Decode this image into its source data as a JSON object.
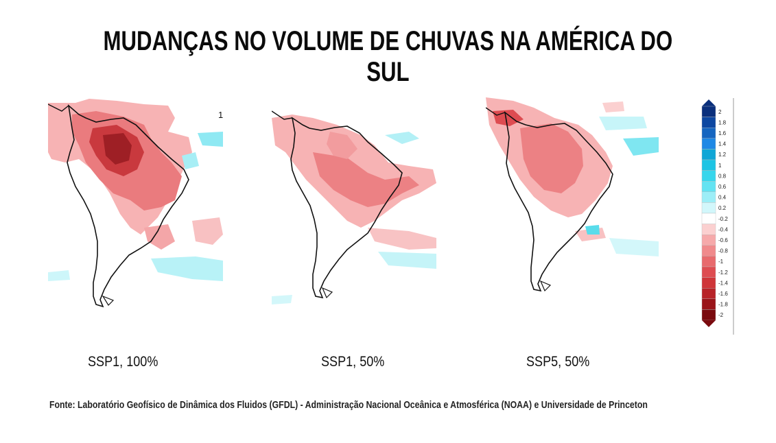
{
  "title": "MUDANÇAS NO VOLUME DE CHUVAS NA AMÉRICA DO SUL",
  "maps": [
    {
      "caption": "SSP1, 100%",
      "corner_label": "1"
    },
    {
      "caption": "SSP1, 50%"
    },
    {
      "caption": "SSP5, 50%"
    }
  ],
  "colorbar": {
    "labels": [
      "2",
      "1.8",
      "1.6",
      "1.4",
      "1.2",
      "1",
      "0.8",
      "0.6",
      "0.4",
      "0.2",
      "-0.2",
      "-0.4",
      "-0.6",
      "-0.8",
      "-1",
      "-1.2",
      "-1.4",
      "-1.6",
      "-1.8",
      "-2"
    ],
    "colors": [
      "#0a2f7c",
      "#0d47a1",
      "#1565c0",
      "#1e88e5",
      "#10a6d6",
      "#1cc4e4",
      "#38d6ec",
      "#64e3f2",
      "#9deef7",
      "#d2f7fb",
      "#ffffff",
      "#fbd0d0",
      "#f6a9aa",
      "#f08a8c",
      "#e86a6d",
      "#de4c51",
      "#cf3539",
      "#b82328",
      "#9a1419",
      "#7a0a0e"
    ]
  },
  "source": "Fonte: Laboratório Geofísico de Dinâmica dos Fluidos (GFDL) - Administração Nacional Oceânica e Atmosférica (NOAA) e Universidade de Princeton"
}
